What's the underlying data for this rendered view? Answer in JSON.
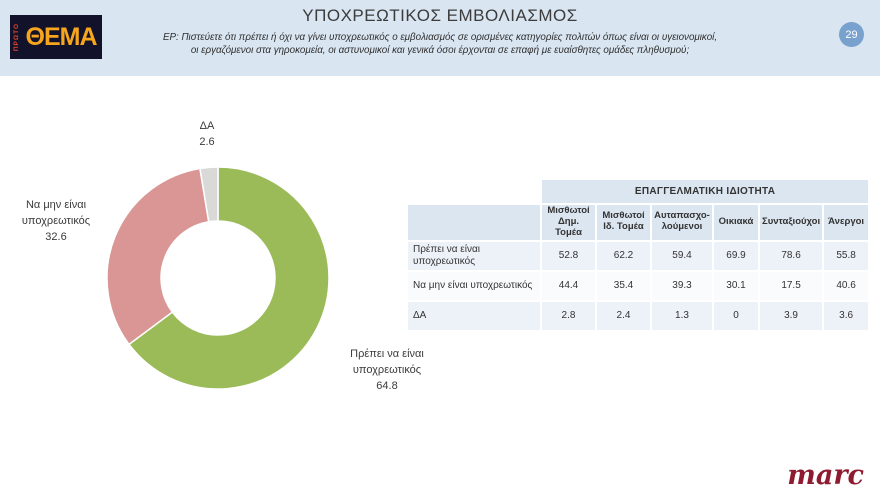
{
  "header": {
    "title": "ΥΠΟΧΡΕΩΤΙΚΟΣ ΕΜΒΟΛΙΑΣΜΟΣ",
    "subtitle_line1": "ΕΡ: Πιστεύετε ότι πρέπει ή όχι να γίνει υποχρεωτικός ο εμβολιασμός σε ορισμένες κατηγορίες πολιτών όπως είναι οι υγειονομικοί,",
    "subtitle_line2": "οι εργαζόμενοι στα γηροκομεία, οι αστυνομικοί και γενικά όσοι έρχονται σε επαφή με ευαίσθητες ομάδες πληθυσμού;",
    "page_number": "29",
    "logo": {
      "top": "ΠΡΩΤΟ",
      "main": "ΘΕΜΑ"
    }
  },
  "chart_data": {
    "type": "pie",
    "donut": true,
    "legend_position": "none",
    "segments": [
      {
        "label": "Πρέπει να είναι υποχρεωτικός",
        "value": 64.8,
        "color": "#9bbb59"
      },
      {
        "label": "Να μην είναι υποχρεωτικός",
        "value": 32.6,
        "color": "#d99694"
      },
      {
        "label": "ΔΑ",
        "value": 2.6,
        "color": "#d9d9d9"
      }
    ]
  },
  "table": {
    "group_header": "ΕΠΑΓΓΕΛΜΑΤΙΚΗ ΙΔΙΟΤΗΤΑ",
    "columns": [
      "Μισθωτοί Δημ. Τομέα",
      "Μισθωτοί Ιδ. Τομέα",
      "Αυταπασχο-λούμενοι",
      "Οικιακά",
      "Συνταξιούχοι",
      "Άνεργοι"
    ],
    "rows": [
      {
        "label": "Πρέπει να είναι υποχρεωτικός",
        "values": [
          "52.8",
          "62.2",
          "59.4",
          "69.9",
          "78.6",
          "55.8"
        ]
      },
      {
        "label": "Να μην είναι υποχρεωτικός",
        "values": [
          "44.4",
          "35.4",
          "39.3",
          "30.1",
          "17.5",
          "40.6"
        ]
      },
      {
        "label": "ΔΑ",
        "values": [
          "2.8",
          "2.4",
          "1.3",
          "0",
          "3.9",
          "3.6"
        ]
      }
    ]
  },
  "footer": {
    "brand": "marc"
  }
}
